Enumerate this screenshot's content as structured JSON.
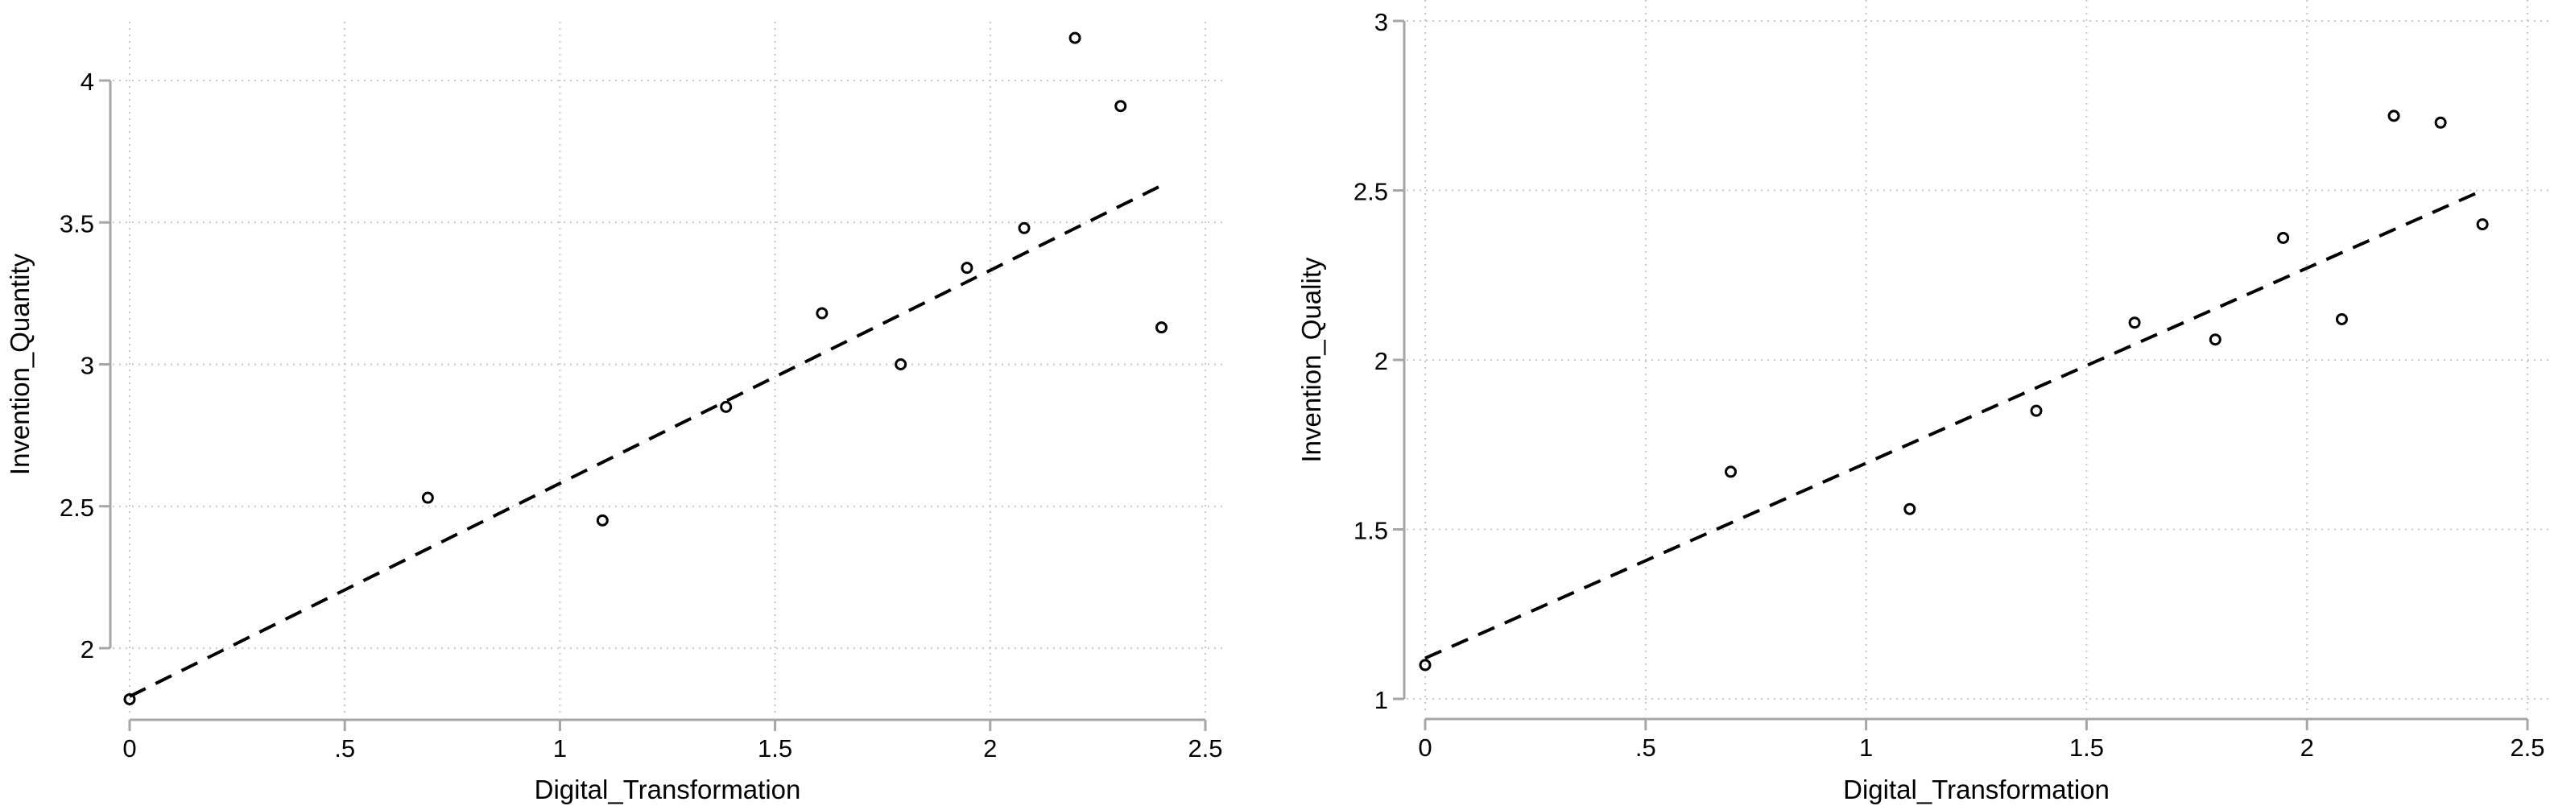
{
  "chart_data": [
    {
      "type": "scatter",
      "xlabel": "Digital_Transformation",
      "ylabel": "Invention_Quantity",
      "xlim": [
        0,
        2.5
      ],
      "ylim": [
        2,
        4
      ],
      "xticks": [
        0,
        0.5,
        1,
        1.5,
        2,
        2.5
      ],
      "xtick_labels": [
        "0",
        ".5",
        "1",
        "1.5",
        "2",
        "2.5"
      ],
      "yticks": [
        2,
        2.5,
        3,
        3.5,
        4
      ],
      "ytick_labels": [
        "2",
        "2.5",
        "3",
        "3.5",
        "4"
      ],
      "grid": true,
      "marker": "hollow-circle",
      "x": [
        0,
        0.693,
        1.099,
        1.386,
        1.609,
        1.792,
        1.946,
        2.079,
        2.197,
        2.303,
        2.398
      ],
      "y": [
        1.82,
        2.53,
        2.45,
        2.85,
        3.18,
        3.0,
        3.34,
        3.48,
        4.15,
        3.91,
        3.13
      ],
      "fit_line": {
        "style": "dashed",
        "x": [
          0,
          2.398
        ],
        "y": [
          1.83,
          3.63
        ]
      }
    },
    {
      "type": "scatter",
      "xlabel": "Digital_Transformation",
      "ylabel": "Invention_Quality",
      "xlim": [
        0,
        2.5
      ],
      "ylim": [
        1,
        3
      ],
      "xticks": [
        0,
        0.5,
        1,
        1.5,
        2,
        2.5
      ],
      "xtick_labels": [
        "0",
        ".5",
        "1",
        "1.5",
        "2",
        "2.5"
      ],
      "yticks": [
        1,
        1.5,
        2,
        2.5,
        3
      ],
      "ytick_labels": [
        "1",
        "1.5",
        "2",
        "2.5",
        "3"
      ],
      "grid": true,
      "marker": "hollow-circle",
      "x": [
        0,
        0.693,
        1.099,
        1.386,
        1.609,
        1.792,
        1.946,
        2.079,
        2.197,
        2.303,
        2.398
      ],
      "y": [
        1.1,
        1.67,
        1.56,
        1.85,
        2.11,
        2.06,
        2.36,
        2.12,
        2.72,
        2.7,
        2.4
      ],
      "fit_line": {
        "style": "dashed",
        "x": [
          0,
          2.398
        ],
        "y": [
          1.12,
          2.5
        ]
      }
    }
  ],
  "colors": {
    "marker": "#000000",
    "fit_line": "#000000",
    "axis": "#a6a6a6",
    "grid": "#c8c8c8",
    "background": "#ffffff"
  }
}
